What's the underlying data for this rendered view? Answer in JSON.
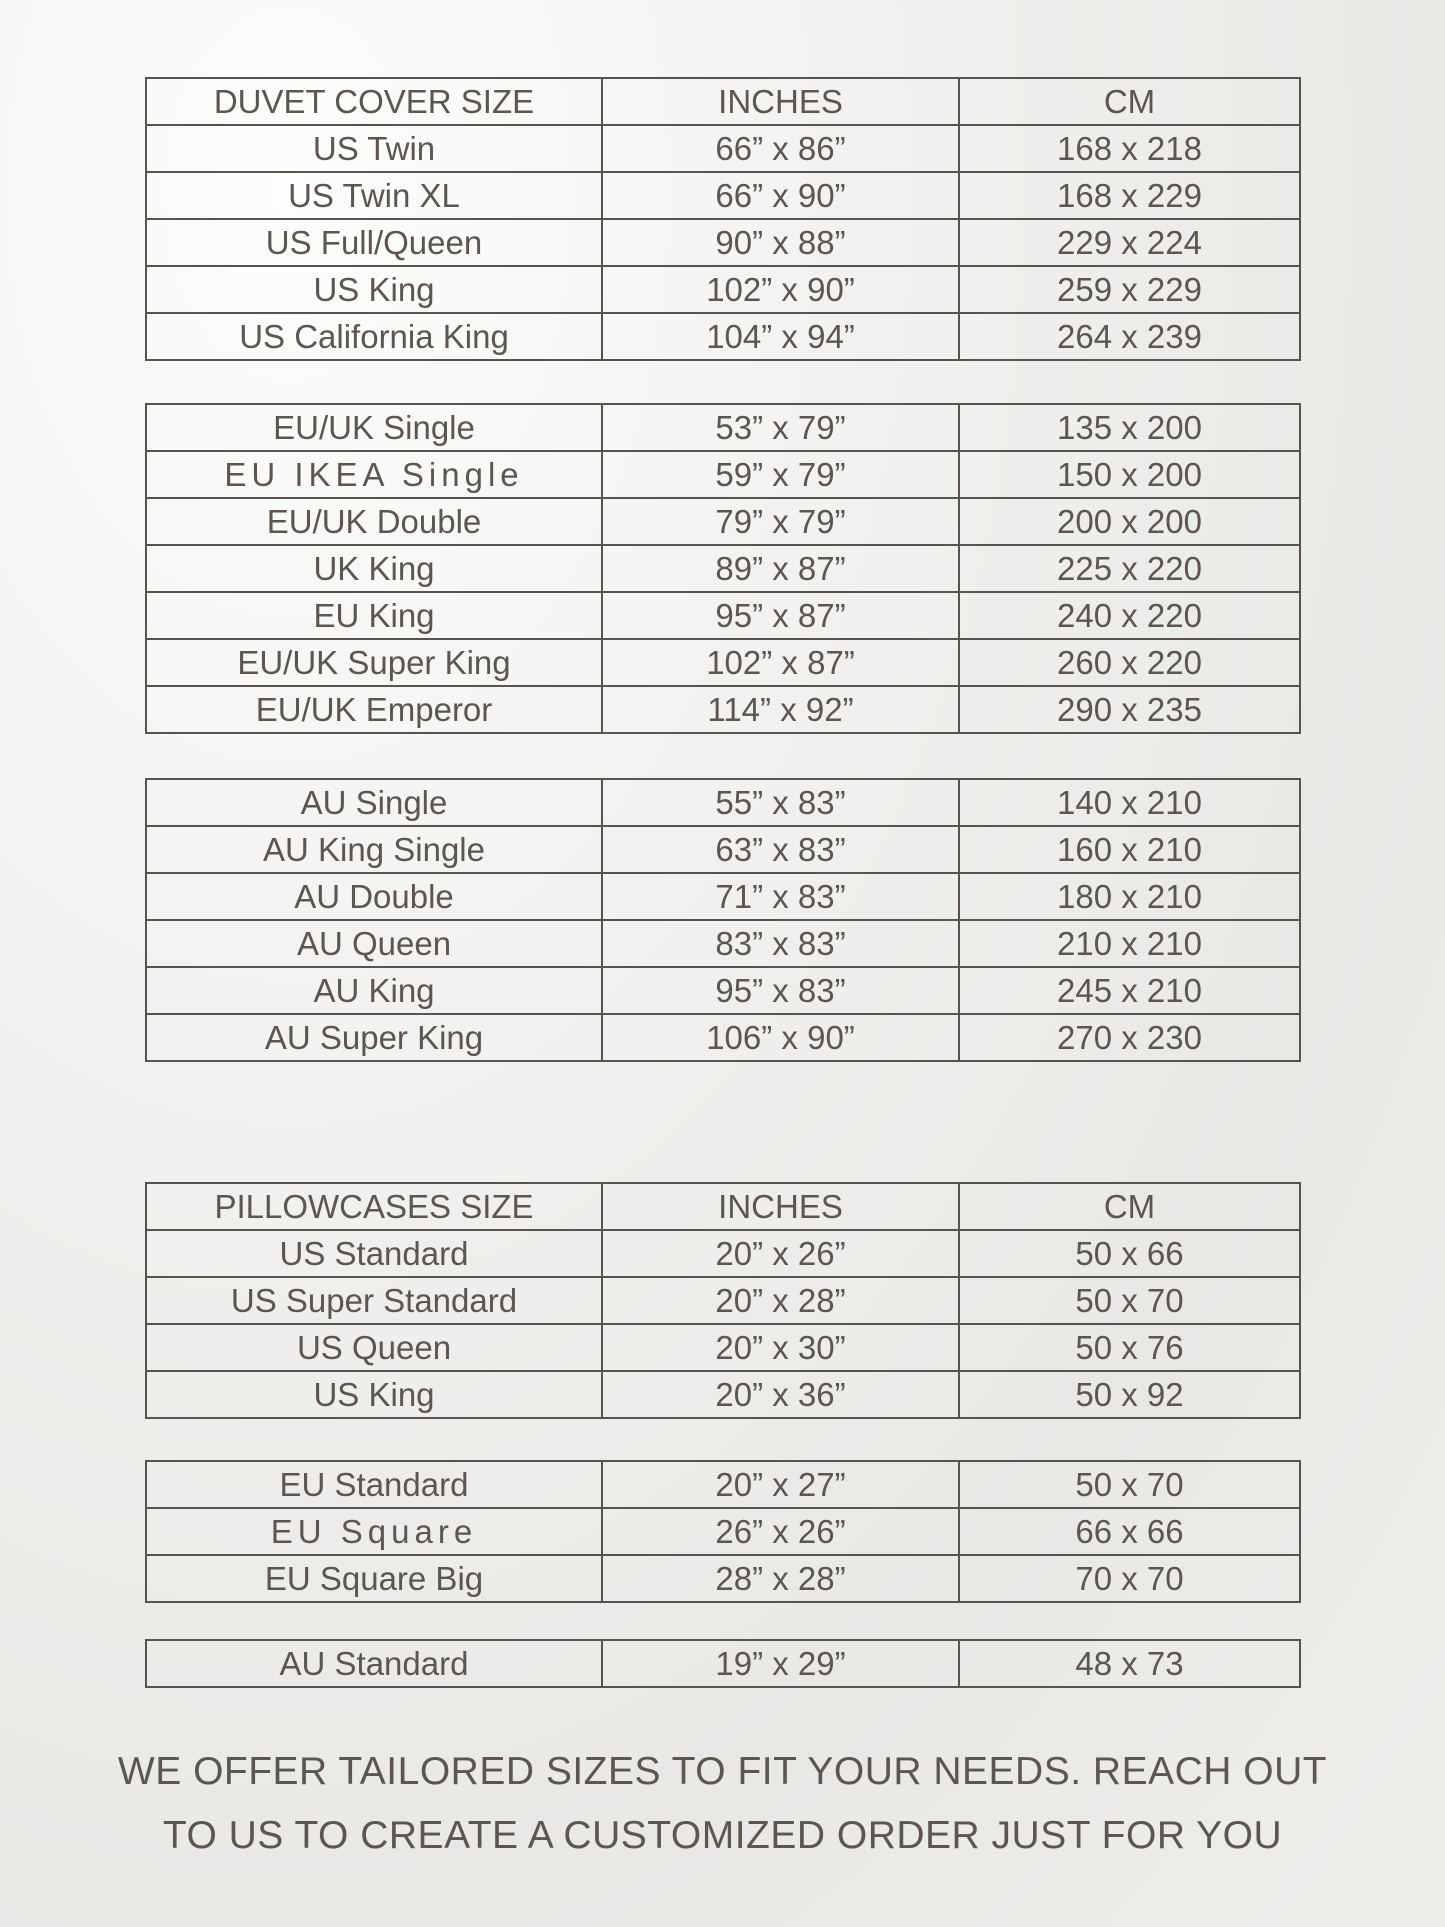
{
  "duvet": {
    "header": [
      "DUVET COVER SIZE",
      "INCHES",
      "CM"
    ],
    "groups": [
      [
        [
          "US Twin",
          "66” x 86”",
          "168 x 218"
        ],
        [
          "US Twin XL",
          "66” x 90”",
          "168 x 229"
        ],
        [
          "US Full/Queen",
          "90” x 88”",
          "229 x 224"
        ],
        [
          "US King",
          "102” x 90”",
          "259 x 229"
        ],
        [
          "US California King",
          "104” x 94”",
          "264 x 239"
        ]
      ],
      [
        [
          "EU/UK Single",
          "53” x 79”",
          "135 x 200"
        ],
        [
          "EU IKEA Single",
          "59” x 79”",
          "150 x 200"
        ],
        [
          "EU/UK Double",
          "79” x 79”",
          "200 x 200"
        ],
        [
          "UK King",
          "89” x 87”",
          "225 x 220"
        ],
        [
          "EU King",
          "95” x 87”",
          "240 x 220"
        ],
        [
          "EU/UK Super King",
          "102” x 87”",
          "260 x 220"
        ],
        [
          "EU/UK Emperor",
          "114” x 92”",
          "290 x 235"
        ]
      ],
      [
        [
          "AU Single",
          "55” x 83”",
          "140 x 210"
        ],
        [
          "AU King Single",
          "63” x 83”",
          "160 x 210"
        ],
        [
          "AU Double",
          "71” x 83”",
          "180 x 210"
        ],
        [
          "AU Queen",
          "83” x 83”",
          "210 x 210"
        ],
        [
          "AU King",
          "95” x 83”",
          "245 x 210"
        ],
        [
          "AU Super King",
          "106” x 90”",
          "270 x 230"
        ]
      ]
    ]
  },
  "pillow": {
    "header": [
      "PILLOWCASES SIZE",
      "INCHES",
      "CM"
    ],
    "groups": [
      [
        [
          "US Standard",
          "20” x 26”",
          "50 x 66"
        ],
        [
          "US Super Standard",
          "20” x 28”",
          "50 x 70"
        ],
        [
          "US Queen",
          "20” x 30”",
          "50 x 76"
        ],
        [
          "US King",
          "20” x 36”",
          "50 x 92"
        ]
      ],
      [
        [
          "EU Standard",
          "20” x 27”",
          "50 x 70"
        ],
        [
          "EU Square",
          "26” x 26”",
          "66 x 66"
        ],
        [
          "EU Square Big",
          "28” x 28”",
          "70 x 70"
        ]
      ],
      [
        [
          "AU Standard",
          "19” x 29”",
          "48 x 73"
        ]
      ]
    ]
  },
  "footer": {
    "line1": "WE OFFER TAILORED SIZES TO FIT YOUR NEEDS. REACH OUT",
    "line2": "TO US TO CREATE A CUSTOMIZED ORDER JUST FOR YOU"
  },
  "colors": {
    "text": "#5b5651",
    "border": "#57534f"
  }
}
